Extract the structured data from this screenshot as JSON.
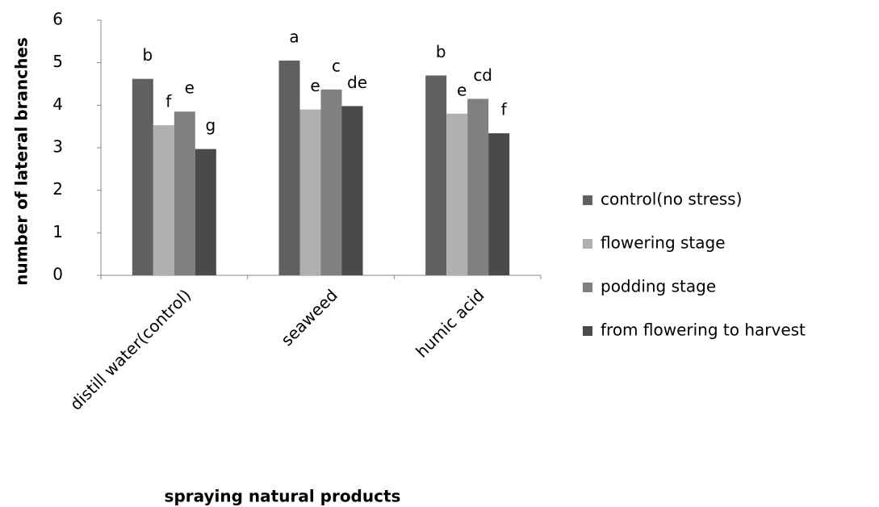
{
  "chart_data": {
    "type": "bar",
    "x_label": "spraying natural products",
    "y_label": "number of lateral branches",
    "categories": [
      "distill water(control)",
      "seaweed",
      "humic acid"
    ],
    "series": [
      {
        "name": "control(no stress)",
        "color": "#606060",
        "values": [
          4.62,
          5.05,
          4.7
        ],
        "letters": [
          "b",
          "a",
          "b"
        ]
      },
      {
        "name": "flowering stage",
        "color": "#b0b0b0",
        "values": [
          3.53,
          3.9,
          3.8
        ],
        "letters": [
          "f",
          "e",
          "e"
        ]
      },
      {
        "name": "podding stage",
        "color": "#808080",
        "values": [
          3.85,
          4.37,
          4.15
        ],
        "letters": [
          "e",
          "c",
          "cd"
        ]
      },
      {
        "name": "from flowering to harvest",
        "color": "#4a4a4a",
        "values": [
          2.97,
          3.98,
          3.34
        ],
        "letters": [
          "g",
          "de",
          "f"
        ]
      }
    ],
    "ylim": [
      0,
      6
    ],
    "yticks": [
      0,
      1,
      2,
      3,
      4,
      5,
      6
    ],
    "grid": false,
    "legend": "right"
  }
}
